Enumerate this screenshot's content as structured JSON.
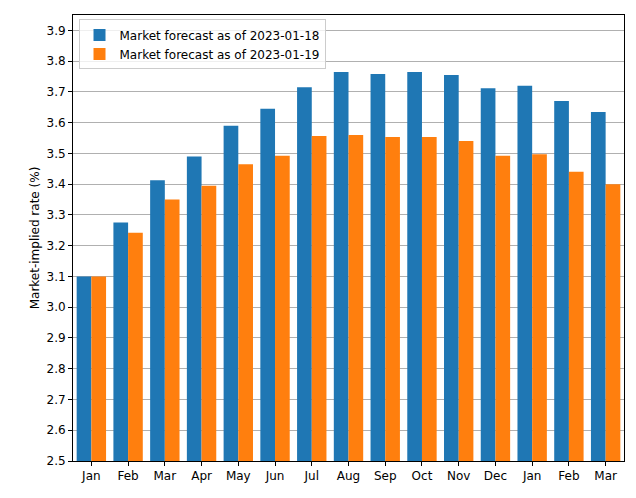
{
  "chart_data": {
    "type": "bar",
    "y_label": "Market-implied rate (%)",
    "categories": [
      "Jan",
      "Feb",
      "Mar",
      "Apr",
      "May",
      "Jun",
      "Jul",
      "Aug",
      "Sep",
      "Oct",
      "Nov",
      "Dec",
      "Jan",
      "Feb",
      "Mar"
    ],
    "series": [
      {
        "name": "Market forecast as of 2023-01-18",
        "color": "#1f77b4",
        "values": [
          3.1,
          3.275,
          3.413,
          3.49,
          3.59,
          3.645,
          3.715,
          3.765,
          3.758,
          3.765,
          3.755,
          3.712,
          3.72,
          3.67,
          3.635
        ]
      },
      {
        "name": "Market forecast as of 2023-01-19",
        "color": "#ff7f0e",
        "values": [
          3.1,
          3.242,
          3.35,
          3.395,
          3.465,
          3.492,
          3.557,
          3.56,
          3.553,
          3.553,
          3.54,
          3.492,
          3.497,
          3.44,
          3.4
        ]
      }
    ],
    "ylim": [
      2.5,
      3.95
    ],
    "yticks": [
      2.5,
      2.6,
      2.7,
      2.8,
      2.9,
      {
        "value": 3,
        "label": "3.0"
      },
      3.1,
      3.2,
      3.3,
      3.4,
      3.5,
      3.6,
      3.7,
      3.8,
      3.9
    ],
    "grid": true,
    "legend": "upper left"
  }
}
